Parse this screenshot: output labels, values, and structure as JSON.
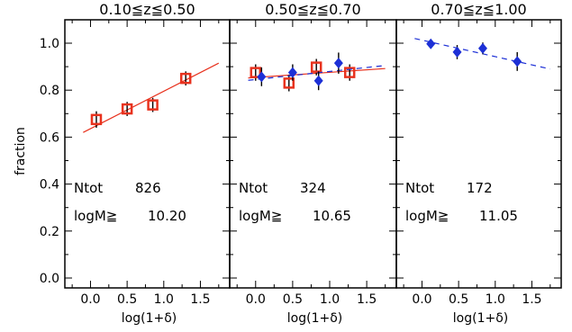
{
  "chart_data": {
    "type": "scatter",
    "ylabel": "fraction",
    "ylim": [
      0.0,
      1.0
    ],
    "yticks": [
      "0.0",
      "0.2",
      "0.4",
      "0.6",
      "0.8",
      "1.0"
    ],
    "xticks": [
      "0.0",
      "0.5",
      "1.0",
      "1.5"
    ],
    "xlim": [
      -0.35,
      1.9
    ],
    "panels": [
      {
        "title": "0.10≦z≦0.50",
        "xlabel": "log(1+δ)",
        "ntot_label": "Ntot",
        "ntot_value": "826",
        "logm_label": "logM≧",
        "logm_value": "10.20",
        "series": [
          {
            "marker": "square",
            "color": "#e8321e",
            "points": [
              {
                "x": 0.08,
                "y": 0.675,
                "err": 0.035
              },
              {
                "x": 0.5,
                "y": 0.72,
                "err": 0.03
              },
              {
                "x": 0.85,
                "y": 0.737,
                "err": 0.03
              },
              {
                "x": 1.3,
                "y": 0.85,
                "err": 0.03
              }
            ],
            "fit": {
              "x": [
                -0.1,
                1.75
              ],
              "y": [
                0.62,
                0.915
              ],
              "style": "solid"
            }
          }
        ]
      },
      {
        "title": "0.50≦z≦0.70",
        "xlabel": "log(1+δ)",
        "ntot_label": "Ntot",
        "ntot_value": "324",
        "logm_label": "logM≧",
        "logm_value": "10.65",
        "series": [
          {
            "marker": "square",
            "color": "#e8321e",
            "points": [
              {
                "x": 0.0,
                "y": 0.875,
                "err": 0.035
              },
              {
                "x": 0.45,
                "y": 0.83,
                "err": 0.035
              },
              {
                "x": 0.82,
                "y": 0.898,
                "err": 0.035
              },
              {
                "x": 1.27,
                "y": 0.875,
                "err": 0.035
              }
            ],
            "fit": {
              "x": [
                -0.1,
                1.75
              ],
              "y": [
                0.852,
                0.892
              ],
              "style": "solid"
            }
          },
          {
            "marker": "diamond",
            "color": "#1d30d6",
            "points": [
              {
                "x": 0.08,
                "y": 0.857,
                "err": 0.04
              },
              {
                "x": 0.5,
                "y": 0.875,
                "err": 0.035
              },
              {
                "x": 0.85,
                "y": 0.84,
                "err": 0.04
              },
              {
                "x": 1.12,
                "y": 0.915,
                "err": 0.045
              }
            ],
            "fit": {
              "x": [
                -0.1,
                1.75
              ],
              "y": [
                0.842,
                0.905
              ],
              "style": "dashed"
            }
          }
        ]
      },
      {
        "title": "0.70≦z≦1.00",
        "xlabel": "log(1+δ)",
        "ntot_label": "Ntot",
        "ntot_value": "172",
        "logm_label": "logM≧",
        "logm_value": "11.05",
        "series": [
          {
            "marker": "diamond",
            "color": "#1d30d6",
            "points": [
              {
                "x": 0.12,
                "y": 0.997,
                "err": 0.015
              },
              {
                "x": 0.48,
                "y": 0.962,
                "err": 0.03
              },
              {
                "x": 0.83,
                "y": 0.978,
                "err": 0.025
              },
              {
                "x": 1.3,
                "y": 0.922,
                "err": 0.04
              }
            ],
            "fit": {
              "x": [
                -0.1,
                1.75
              ],
              "y": [
                1.02,
                0.89
              ],
              "style": "dashed"
            }
          }
        ]
      }
    ]
  }
}
